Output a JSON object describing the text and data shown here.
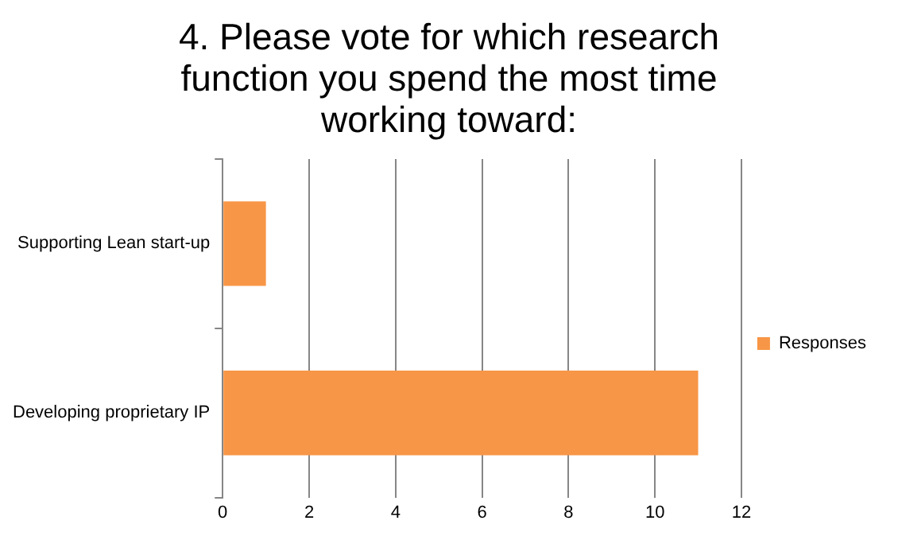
{
  "chart_data": {
    "type": "bar",
    "orientation": "horizontal",
    "title": "4. Please vote for which research function you spend the most time working toward:",
    "categories": [
      "Supporting Lean start-up",
      "Developing proprietary IP"
    ],
    "series": [
      {
        "name": "Responses",
        "color": "#f79646",
        "values": [
          1,
          11
        ]
      }
    ],
    "xlim": [
      0,
      12
    ],
    "xticks": [
      0,
      2,
      4,
      6,
      8,
      10,
      12
    ],
    "grid": "x",
    "legend": "right"
  }
}
